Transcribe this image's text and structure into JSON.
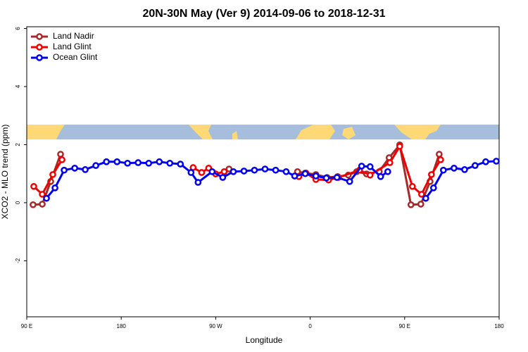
{
  "chart_data": {
    "type": "line",
    "title": "20N-30N May (Ver 9)   2014-09-06 to 2018-12-31",
    "x_label": "Longitude",
    "y_label": "XCO2 - MLO trend (ppm)",
    "xlim": [
      90,
      540
    ],
    "xticks": [
      {
        "value": 90,
        "label": "90 E"
      },
      180,
      {
        "value": 270,
        "label": "90 W"
      },
      {
        "value": 360,
        "label": "0"
      },
      {
        "value": 450,
        "label": "90 E"
      },
      {
        "value": 540,
        "label": "180"
      }
    ],
    "ylim": [
      -3.93,
      6.06
    ],
    "yticks": [
      -2,
      0,
      2,
      4,
      6
    ],
    "legend": "top-left",
    "series": [
      {
        "name": "Land Nadir",
        "color": "#a52a2a",
        "x": [
          96.0,
          104.8,
          112.8,
          122.2,
          200,
          282.7,
          320,
          347.9,
          355.3,
          365.4,
          376.1,
          386.2,
          396.3,
          404.3,
          413.7,
          425.8,
          435.2,
          445.3,
          456.0,
          465.4,
          474.2,
          482.9
        ],
        "values": [
          -0.07,
          -0.05,
          0.73,
          1.67,
          null,
          1.16,
          null,
          1.07,
          1.02,
          0.97,
          0.87,
          0.9,
          0.95,
          1.07,
          0.99,
          1.07,
          1.55,
          1.99,
          -0.07,
          -0.05,
          0.73,
          1.67
        ]
      },
      {
        "name": "Land Glint",
        "color": "#ee0000",
        "x": [
          96.7,
          104.8,
          114.8,
          123.6,
          200,
          248.5,
          256.6,
          263.3,
          270.0,
          278.1,
          320,
          349.2,
          356.0,
          365.4,
          377.5,
          386.9,
          407.0,
          417.1,
          435.9,
          445.3,
          457.4,
          466.1,
          475.5,
          484.3
        ],
        "values": [
          0.56,
          0.29,
          0.97,
          1.48,
          null,
          1.21,
          1.04,
          1.19,
          0.99,
          1.07,
          null,
          0.9,
          1.02,
          0.8,
          0.78,
          0.87,
          1.12,
          0.95,
          1.38,
          1.94,
          0.56,
          0.29,
          0.97,
          1.48
        ]
      },
      {
        "name": "Ocean Glint",
        "color": "#0000ee",
        "x": [
          108.8,
          116.9,
          125.6,
          135.7,
          145.7,
          155.8,
          165.9,
          176.0,
          186.0,
          196.1,
          206.2,
          216.3,
          226.3,
          236.4,
          246.5,
          253.2,
          266.6,
          276.7,
          286.8,
          296.9,
          306.9,
          317.0,
          327.1,
          337.1,
          345.2,
          355.3,
          365.4,
          375.4,
          385.5,
          397.6,
          409.0,
          417.1,
          427.1,
          433.9,
          450,
          470.1,
          477.5,
          486.9,
          497.0,
          507.1,
          517.1,
          527.2,
          537.3
        ],
        "values": [
          0.15,
          0.51,
          1.12,
          1.19,
          1.14,
          1.28,
          1.41,
          1.41,
          1.36,
          1.38,
          1.36,
          1.41,
          1.36,
          1.33,
          1.04,
          0.7,
          1.07,
          0.87,
          1.07,
          1.09,
          1.12,
          1.16,
          1.12,
          1.07,
          0.92,
          1.0,
          0.92,
          0.85,
          0.87,
          0.73,
          1.26,
          1.24,
          0.9,
          1.07,
          null,
          0.15,
          0.51,
          1.12,
          1.19,
          1.14,
          1.28,
          1.41,
          1.43
        ]
      }
    ]
  }
}
